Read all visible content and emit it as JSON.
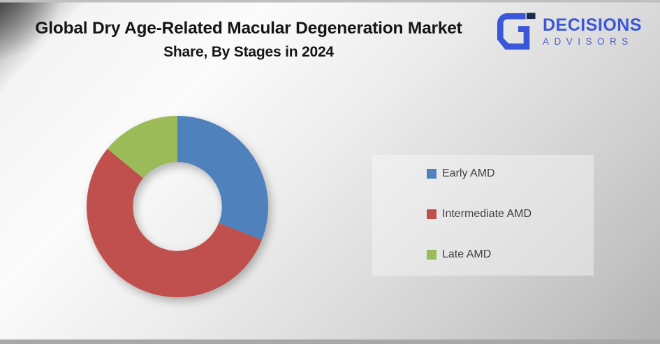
{
  "title": {
    "line1": "Global Dry Age-Related Macular Degeneration Market",
    "line2": "Share, By Stages in 2024"
  },
  "logo": {
    "name": "DECISIONS",
    "tagline": "ADVISORS",
    "brand_color": "#3a57d8",
    "mark_accent_color": "#1b2a4a"
  },
  "chart_data": {
    "type": "pie",
    "subtype": "donut",
    "title": "Global Dry Age-Related Macular Degeneration Market Share, By Stages in 2024",
    "categories": [
      "Early AMD",
      "Intermediate AMD",
      "Late AMD"
    ],
    "values": [
      31,
      55,
      14
    ],
    "unit": "%",
    "colors": [
      "#4F81BD",
      "#C0504D",
      "#9BBB59"
    ],
    "start_angle_deg": 0,
    "direction": "clockwise",
    "donut_hole_ratio": 0.49,
    "data_labels": false,
    "legend_position": "right"
  },
  "legend": {
    "items": [
      {
        "label": "Early AMD",
        "color": "#4F81BD"
      },
      {
        "label": "Intermediate AMD",
        "color": "#C0504D"
      },
      {
        "label": "Late AMD",
        "color": "#9BBB59"
      }
    ]
  }
}
